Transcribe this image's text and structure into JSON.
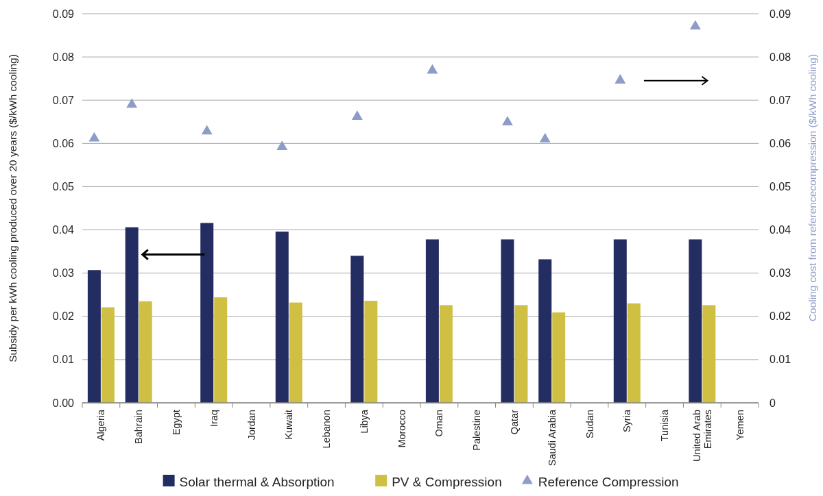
{
  "chart_data": {
    "type": "bar",
    "ylabel": "Subsidy per kWh cooling produced over 20 years ($/kWh cooling)",
    "y2label": "Cooling cost from referencecompression ($/kWh cooling)",
    "categories": [
      "Algeria",
      "Bahrain",
      "Egypt",
      "Iraq",
      "Jordan",
      "Kuwait",
      "Lebanon",
      "Libya",
      "Morocco",
      "Oman",
      "Palestine",
      "Qatar",
      "Saudi Arabia",
      "Sudan",
      "Syria",
      "Tunisia",
      "United Arab Emirates",
      "Yemen"
    ],
    "series": [
      {
        "name": "Solar thermal & Absorption",
        "color": "#232d62",
        "values": [
          0.0307,
          0.0406,
          null,
          0.0416,
          null,
          0.0396,
          null,
          0.034,
          null,
          0.0378,
          null,
          0.0378,
          0.0332,
          null,
          0.0378,
          null,
          0.0378,
          null
        ]
      },
      {
        "name": "PV & Compression",
        "color": "#cfc043",
        "values": [
          0.0221,
          0.0235,
          null,
          0.0244,
          null,
          0.0232,
          null,
          0.0236,
          null,
          0.0226,
          null,
          0.0226,
          0.0209,
          null,
          0.023,
          null,
          0.0226,
          null
        ]
      },
      {
        "name": "Reference Compression",
        "type": "scatter",
        "axis": "y2",
        "marker": "triangle",
        "color": "#8e9cc8",
        "values": [
          0.0615,
          0.0693,
          null,
          0.0631,
          null,
          0.0595,
          null,
          0.0665,
          null,
          0.0772,
          null,
          0.0652,
          0.0613,
          null,
          0.0749,
          null,
          0.0874,
          null
        ]
      }
    ],
    "ylim": [
      0,
      0.09
    ],
    "yticks": [
      {
        "value": 0,
        "label": "0.00"
      },
      0.01,
      0.02,
      0.03,
      0.04,
      0.05,
      0.06,
      0.07,
      0.08,
      0.09
    ],
    "y2lim": [
      0,
      0.09
    ],
    "y2ticks": [
      0,
      0.01,
      0.02,
      0.03,
      0.04,
      0.05,
      0.06,
      0.07,
      0.08,
      0.09
    ],
    "grid": "y",
    "legend": "bottom"
  }
}
